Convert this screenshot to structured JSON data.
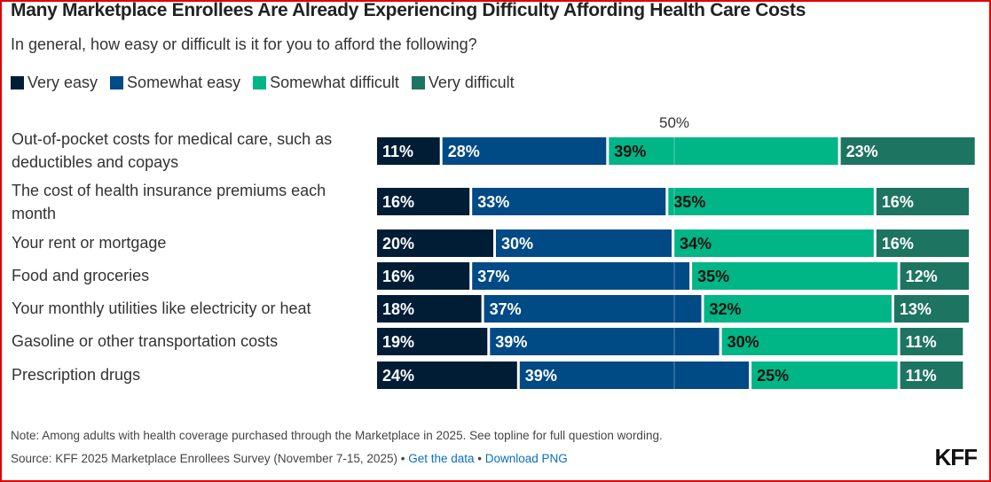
{
  "chart_data": {
    "type": "bar",
    "orientation": "horizontal-stacked",
    "title": "Many Marketplace Enrollees Are Already Experiencing Difficulty Affording Health Care Costs",
    "subtitle": "In general, how easy or difficult is it for you to afford the following?",
    "reference_line": {
      "value": 50,
      "label": "50%"
    },
    "categories": [
      "Out-of-pocket costs for medical care, such as deductibles and copays",
      "The cost of health insurance premiums each month",
      "Your rent or mortgage",
      "Food and groceries",
      "Your monthly utilities like electricity or heat",
      "Gasoline or other transportation costs",
      "Prescription drugs"
    ],
    "series": [
      {
        "name": "Very easy",
        "color": "#001d36",
        "label_color": "#ffffff",
        "values": [
          11,
          16,
          20,
          16,
          18,
          19,
          24
        ]
      },
      {
        "name": "Somewhat easy",
        "color": "#004a86",
        "label_color": "#ffffff",
        "values": [
          28,
          33,
          30,
          37,
          37,
          39,
          39
        ]
      },
      {
        "name": "Somewhat difficult",
        "color": "#00b586",
        "label_color": "#111111",
        "values": [
          39,
          35,
          34,
          35,
          32,
          30,
          25
        ]
      },
      {
        "name": "Very difficult",
        "color": "#1d7461",
        "label_color": "#ffffff",
        "values": [
          23,
          16,
          16,
          12,
          13,
          11,
          11
        ]
      }
    ],
    "xlim": [
      0,
      100
    ],
    "legend": "top-left"
  },
  "footer": {
    "note": "Note: Among adults with health coverage purchased through the Marketplace in 2025. See topline for full question wording.",
    "source": "Source: KFF 2025 Marketplace Enrollees Survey (November 7-15, 2025)",
    "sep": " • ",
    "get_data": "Get the data",
    "download": "Download PNG",
    "logo": "KFF"
  }
}
